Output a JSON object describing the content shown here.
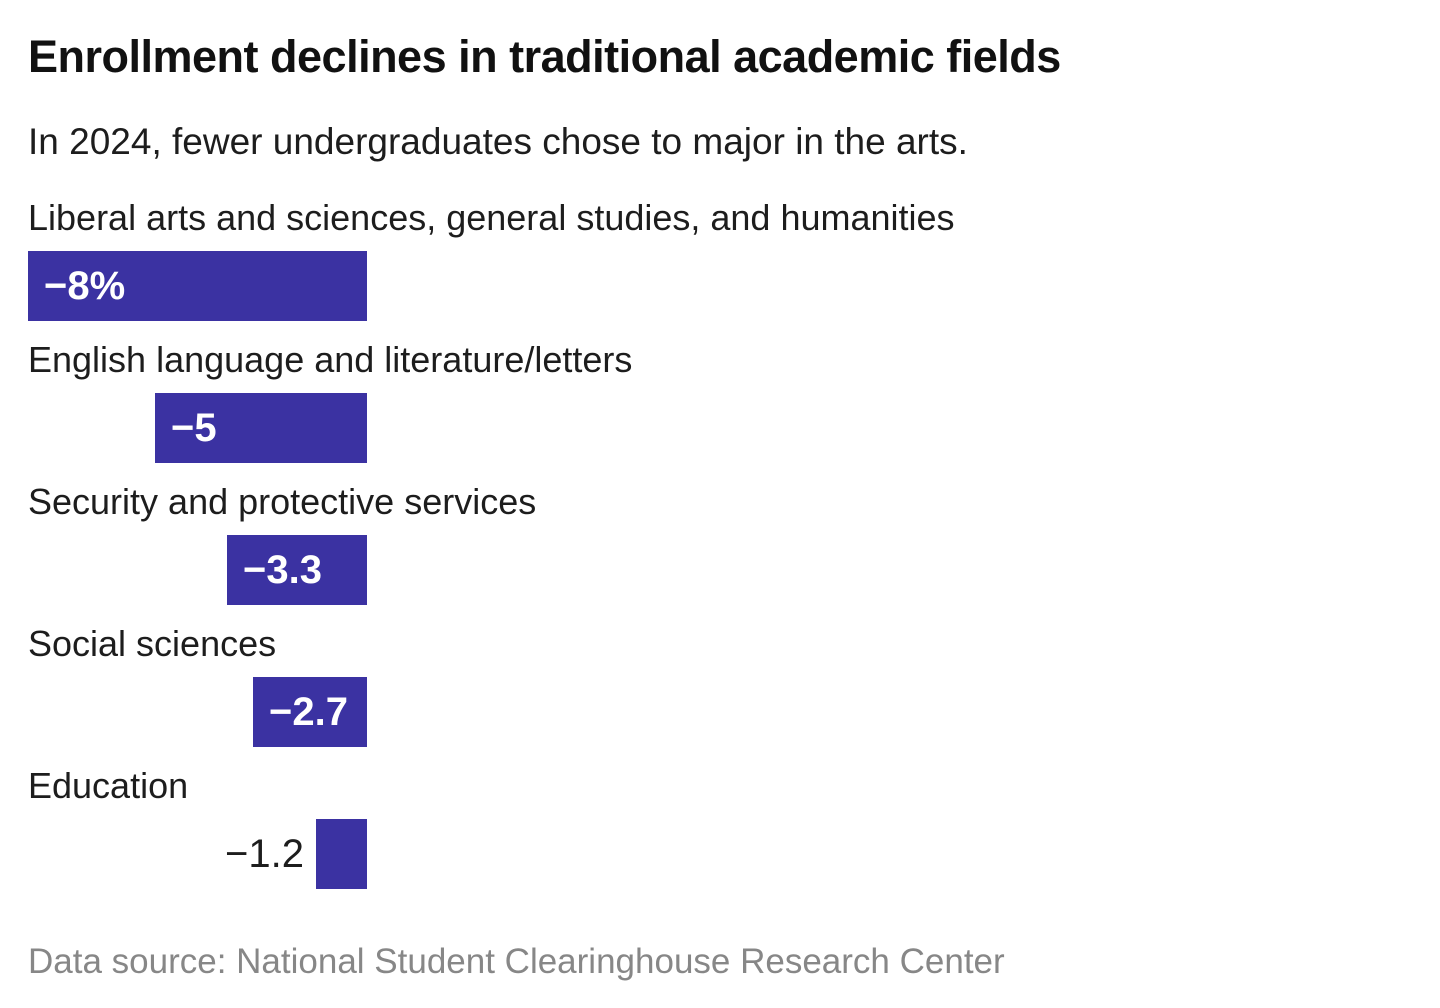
{
  "colors": {
    "bar": "#3b32a2",
    "title_text": "#111111",
    "body_text": "#1d1d1d",
    "value_label_inside": "#ffffff",
    "source_text": "#878787",
    "background": "#ffffff"
  },
  "chart_data": {
    "type": "bar",
    "orientation": "horizontal, bars right-aligned at zero baseline, extending left for negative values",
    "title": "Enrollment declines in traditional academic fields",
    "subtitle": "In 2024, fewer undergraduates chose to major in the arts.",
    "source": "Data source: National Student Clearinghouse Research Center",
    "categories": [
      "Liberal arts and sciences, general studies, and humanities",
      "English language and literature/letters",
      "Security and protective services",
      "Social sciences",
      "Education"
    ],
    "values": [
      -8,
      -5,
      -3.3,
      -2.7,
      -1.2
    ],
    "value_labels": [
      "−8%",
      "−5",
      "−3.3",
      "−2.7",
      "−1.2"
    ],
    "xlim": [
      -8,
      0
    ],
    "grid": false,
    "legend": false,
    "axis_labels_shown": false,
    "value_label_placement": "inside bar (white) when bar is wide enough, otherwise outside-left (dark)"
  }
}
